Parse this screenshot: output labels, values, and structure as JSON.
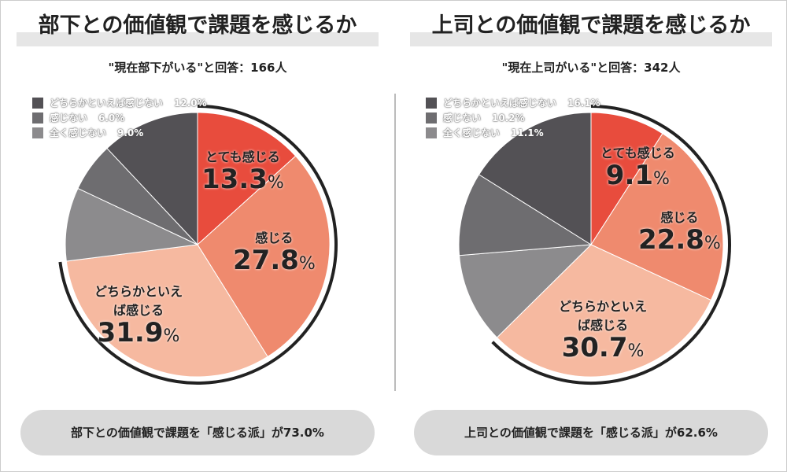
{
  "colors": [
    "#e84c3d",
    "#ef8a6e",
    "#f6b9a0",
    "#8c8b8d",
    "#6e6d70",
    "#535155"
  ],
  "chart_data": [
    {
      "type": "pie",
      "title": "部下との価値観で課題を感じるか",
      "subtitle": "\"現在部下がいる\"と回答：166人",
      "categories": [
        "とても感じる",
        "感じる",
        "どちらかといえば感じる",
        "全く感じない",
        "感じない",
        "どちらかといえば感じない"
      ],
      "values": [
        13.3,
        27.8,
        31.9,
        9.0,
        6.0,
        12.0
      ],
      "labels": [
        "13.3",
        "27.8",
        "31.9"
      ],
      "percent_sign": "%",
      "legend": [
        {
          "name": "どちらかといえば感じない",
          "value": "12.0%"
        },
        {
          "name": "感じない",
          "value": "6.0%"
        },
        {
          "name": "全く感じない",
          "value": "9.0%"
        }
      ],
      "summary": "部下との価値観で課題を「感じる派」が73.0%",
      "highlight_total": 73.0
    },
    {
      "type": "pie",
      "title": "上司との価値観で課題を感じるか",
      "subtitle": "\"現在上司がいる\"と回答：342人",
      "categories": [
        "とても感じる",
        "感じる",
        "どちらかといえば感じる",
        "全く感じない",
        "感じない",
        "どちらかといえば感じない"
      ],
      "values": [
        9.1,
        22.8,
        30.7,
        11.1,
        10.2,
        16.1
      ],
      "labels": [
        "9.1",
        "22.8",
        "30.7"
      ],
      "percent_sign": "%",
      "legend": [
        {
          "name": "どちらかといえば感じない",
          "value": "16.1%"
        },
        {
          "name": "感じない",
          "value": "10.2%"
        },
        {
          "name": "全く感じない",
          "value": "11.1%"
        }
      ],
      "summary": "上司との価値観で課題を「感じる派」が62.6%",
      "highlight_total": 62.6
    }
  ]
}
